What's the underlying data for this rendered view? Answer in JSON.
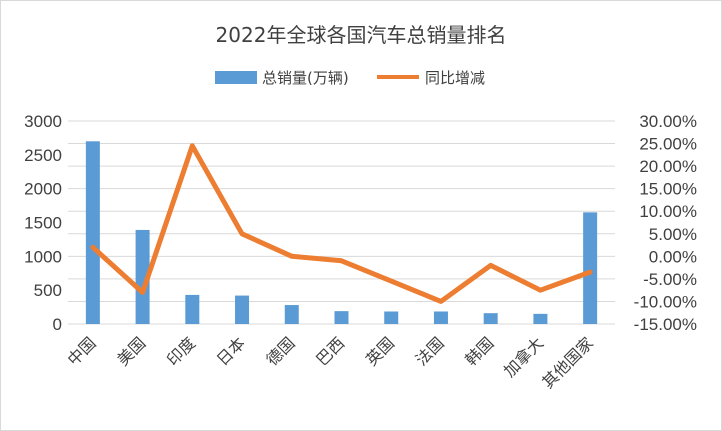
{
  "chart_data": {
    "type": "bar",
    "title": "2022年全球各国汽车总销量排名",
    "categories": [
      "中国",
      "美国",
      "印度",
      "日本",
      "德国",
      "巴西",
      "英国",
      "法国",
      "韩国",
      "加拿大",
      "其他国家"
    ],
    "series": [
      {
        "name": "总销量(万辆)",
        "type": "bar",
        "axis": "left",
        "color": "#5b9bd5",
        "values": [
          2700,
          1390,
          430,
          420,
          280,
          190,
          185,
          185,
          160,
          150,
          1650
        ]
      },
      {
        "name": "同比增减",
        "type": "line",
        "axis": "right",
        "color": "#ed7d31",
        "values": [
          2.0,
          -8.0,
          24.5,
          5.0,
          0.0,
          -1.0,
          -5.5,
          -10.0,
          -2.0,
          -7.5,
          -3.5
        ]
      }
    ],
    "left_axis": {
      "ylim": [
        0,
        3000
      ],
      "ticks": [
        "0",
        "500",
        "1000",
        "1500",
        "2000",
        "2500",
        "3000"
      ]
    },
    "right_axis": {
      "ylim": [
        -15,
        30
      ],
      "ticks": [
        "-15.00%",
        "-10.00%",
        "-5.00%",
        "0.00%",
        "5.00%",
        "10.00%",
        "15.00%",
        "20.00%",
        "25.00%",
        "30.00%"
      ]
    },
    "grid": true,
    "legend": "top"
  }
}
